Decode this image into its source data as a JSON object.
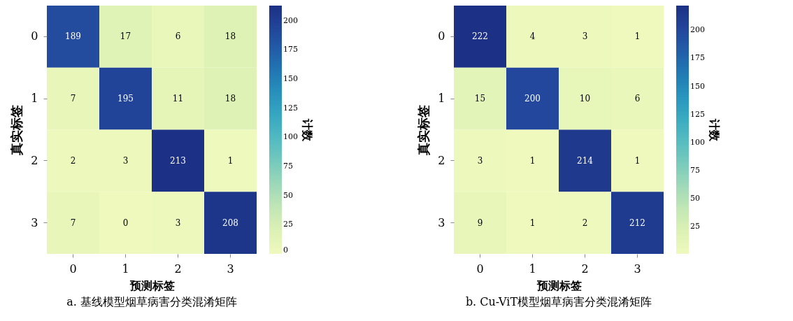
{
  "chart_data": [
    {
      "type": "heatmap",
      "title": "a. 基线模型烟草病害分类混淆矩阵",
      "xlabel": "预测标签",
      "ylabel": "真实标签",
      "clabel": "计数",
      "categories": [
        "0",
        "1",
        "2",
        "3"
      ],
      "y_categories": [
        "0",
        "1",
        "2",
        "3"
      ],
      "cells": [
        [
          189,
          17,
          6,
          18
        ],
        [
          7,
          195,
          11,
          18
        ],
        [
          2,
          3,
          213,
          1
        ],
        [
          7,
          0,
          3,
          208
        ]
      ],
      "data_labels": true,
      "clim": [
        0,
        213
      ],
      "cticks": [
        0,
        25,
        50,
        75,
        100,
        125,
        150,
        175,
        200
      ]
    },
    {
      "type": "heatmap",
      "title": "b. Cu-ViT模型烟草病害分类混淆矩阵",
      "xlabel": "预测标签",
      "ylabel": "真实标签",
      "clabel": "计数",
      "categories": [
        "0",
        "1",
        "2",
        "3"
      ],
      "y_categories": [
        "0",
        "1",
        "2",
        "3"
      ],
      "cells": [
        [
          222,
          4,
          3,
          1
        ],
        [
          15,
          200,
          10,
          6
        ],
        [
          3,
          1,
          214,
          1
        ],
        [
          9,
          1,
          2,
          212
        ]
      ],
      "data_labels": true,
      "clim": [
        1,
        222
      ],
      "cticks": [
        25,
        50,
        75,
        100,
        125,
        150,
        175,
        200
      ]
    }
  ]
}
